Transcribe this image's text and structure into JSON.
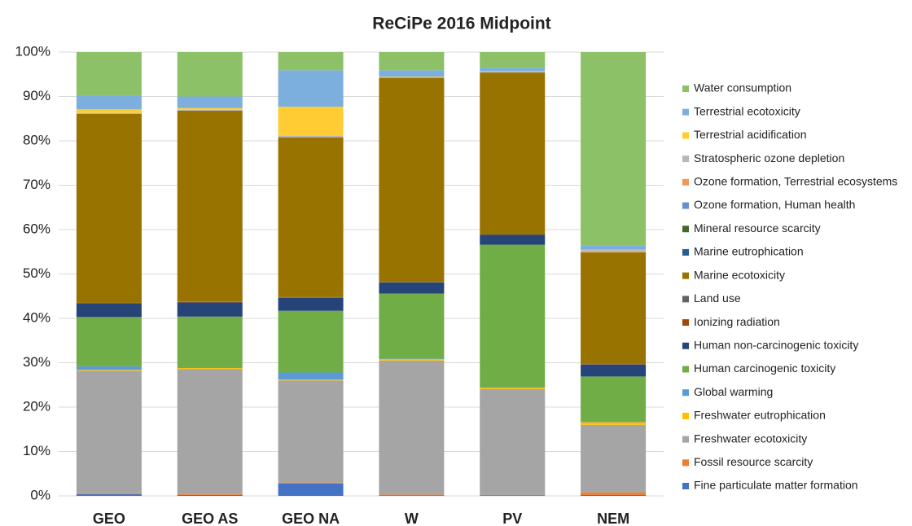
{
  "chart_data": {
    "type": "stacked_bar",
    "title": "ReCiPe 2016 Midpoint",
    "categories": [
      "GEO",
      "GEO  AS",
      "GEO  NA",
      "W",
      "PV",
      "NEM"
    ],
    "ylim": [
      0,
      100
    ],
    "yticks": [
      {
        "value": 0,
        "label": "0%"
      },
      {
        "value": 10,
        "label": "10%"
      },
      {
        "value": 20,
        "label": "20%"
      },
      {
        "value": 30,
        "label": "30%"
      },
      {
        "value": 40,
        "label": "40%"
      },
      {
        "value": 50,
        "label": "50%"
      },
      {
        "value": 60,
        "label": "60%"
      },
      {
        "value": 70,
        "label": "70%"
      },
      {
        "value": 80,
        "label": "80%"
      },
      {
        "value": 90,
        "label": "90%"
      },
      {
        "value": 100,
        "label": "100%"
      }
    ],
    "grid": true,
    "legend": "right",
    "series": [
      {
        "name": "Fine particulate matter formation",
        "color": "#4472c4",
        "values": [
          0.4,
          0.2,
          2.8,
          0.1,
          0.1,
          0.2
        ]
      },
      {
        "name": "Fossil resource scarcity",
        "color": "#ed7d31",
        "values": [
          0.2,
          0.2,
          0.2,
          0.2,
          0.1,
          0.6
        ]
      },
      {
        "name": "Freshwater ecotoxicity",
        "color": "#a5a5a5",
        "values": [
          27.6,
          28.2,
          23,
          30.2,
          23.9,
          15.2
        ]
      },
      {
        "name": "Freshwater eutrophication",
        "color": "#ffc000",
        "values": [
          0.2,
          0.2,
          0.2,
          0.3,
          0.3,
          0.6
        ]
      },
      {
        "name": "Global warming",
        "color": "#5b9bd5",
        "values": [
          0.8,
          0.2,
          1.6,
          0.1,
          0.1,
          0.2
        ]
      },
      {
        "name": "Human carcinogenic toxicity",
        "color": "#70ad47",
        "values": [
          11.1,
          11.4,
          13.9,
          14.7,
          32.1,
          10.1
        ]
      },
      {
        "name": "Human non-carcinogenic toxicity",
        "color": "#264478",
        "values": [
          3,
          3.2,
          2.9,
          2.5,
          2.2,
          2.7
        ]
      },
      {
        "name": "Ionizing radiation",
        "color": "#9e480e",
        "values": [
          0.1,
          0.1,
          0.1,
          0,
          0,
          0.1
        ]
      },
      {
        "name": "Land use",
        "color": "#636363",
        "values": [
          0.1,
          0.1,
          0.1,
          0.1,
          0.1,
          0.1
        ]
      },
      {
        "name": "Marine ecotoxicity",
        "color": "#997300",
        "values": [
          42.6,
          43,
          36,
          46,
          36.5,
          25.1
        ]
      },
      {
        "name": "Marine eutrophication",
        "color": "#255e91",
        "values": [
          0,
          0,
          0,
          0,
          0,
          0
        ]
      },
      {
        "name": "Mineral resource scarcity",
        "color": "#43682b",
        "values": [
          0,
          0,
          0,
          0,
          0,
          0
        ]
      },
      {
        "name": "Ozone formation, Human health",
        "color": "#698ed0",
        "values": [
          0,
          0,
          0,
          0,
          0,
          0
        ]
      },
      {
        "name": "Ozone formation, Terrestrial ecosystems",
        "color": "#f1975a",
        "values": [
          0,
          0,
          0,
          0,
          0,
          0.1
        ]
      },
      {
        "name": "Stratospheric ozone depletion",
        "color": "#b7b7b7",
        "values": [
          0.2,
          0.2,
          0.3,
          0.2,
          0.2,
          0.4
        ]
      },
      {
        "name": "Terrestrial acidification",
        "color": "#ffcd33",
        "values": [
          0.8,
          0.4,
          6.6,
          0.1,
          0.1,
          0.1
        ]
      },
      {
        "name": "Terrestrial ecotoxicity",
        "color": "#7cafdd",
        "values": [
          3.1,
          2.6,
          8.2,
          1.4,
          0.8,
          0.9
        ]
      },
      {
        "name": "Water consumption",
        "color": "#8cc168",
        "values": [
          9.8,
          10,
          4.1,
          4.1,
          3.5,
          43.6
        ]
      }
    ]
  }
}
